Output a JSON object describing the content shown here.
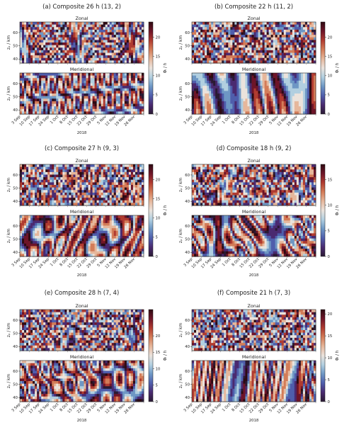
{
  "figure": {
    "colormap": [
      "#2a1a33",
      "#4a2a70",
      "#4f5eac",
      "#6e97c4",
      "#b1cfe0",
      "#ebe3dc",
      "#e6b79b",
      "#d37c58",
      "#b03b30",
      "#6e1528",
      "#2e0a12"
    ]
  },
  "chart_data": [
    {
      "type": "heatmap",
      "title": "(a) Composite 26 h (13, 2)",
      "components": [
        "Zonal",
        "Meridional"
      ],
      "ylabel": "zₚ / km",
      "ylim": [
        37,
        68
      ],
      "yticks": [
        "40",
        "50",
        "60"
      ],
      "xticks": [
        "3 Sep",
        "10 Sep",
        "17 Sep",
        "24 Sep",
        "1 Oct",
        "8 Oct",
        "15 Oct",
        "22 Oct",
        "29 Oct",
        "5 Nov",
        "12 Nov",
        "19 Nov",
        "26 Nov"
      ],
      "xlabel": "2018",
      "colorbar_label": "Φₗ / h",
      "clim": [
        0,
        24
      ],
      "colorbar_ticks": [
        "0",
        "5",
        "10",
        "15",
        "20"
      ]
    },
    {
      "type": "heatmap",
      "title": "(b) Composite 22 h (11, 2)",
      "components": [
        "Zonal",
        "Meridional"
      ],
      "ylabel": "zₚ / km",
      "ylim": [
        37,
        68
      ],
      "yticks": [
        "40",
        "50",
        "60"
      ],
      "xticks": [
        "3 Sep",
        "10 Sep",
        "17 Sep",
        "24 Sep",
        "1 Oct",
        "8 Oct",
        "15 Oct",
        "22 Oct",
        "29 Oct",
        "5 Nov",
        "12 Nov",
        "19 Nov",
        "26 Nov"
      ],
      "xlabel": "2018",
      "colorbar_label": "Φₗ / h",
      "clim": [
        0,
        24
      ],
      "colorbar_ticks": [
        "0",
        "5",
        "10",
        "15",
        "20"
      ]
    },
    {
      "type": "heatmap",
      "title": "(c) Composite 27 h (9, 3)",
      "components": [
        "Zonal",
        "Meridional"
      ],
      "ylabel": "zₚ / km",
      "ylim": [
        37,
        68
      ],
      "yticks": [
        "40",
        "50",
        "60"
      ],
      "xticks": [
        "3 Sep",
        "10 Sep",
        "17 Sep",
        "24 Sep",
        "1 Oct",
        "8 Oct",
        "15 Oct",
        "22 Oct",
        "29 Oct",
        "5 Nov",
        "12 Nov",
        "19 Nov",
        "26 Nov"
      ],
      "xlabel": "2018",
      "colorbar_label": "Φₗ / h",
      "clim": [
        0,
        24
      ],
      "colorbar_ticks": [
        "0",
        "5",
        "10",
        "15",
        "20"
      ]
    },
    {
      "type": "heatmap",
      "title": "(d) Composite 18 h (9, 2)",
      "components": [
        "Zonal",
        "Meridional"
      ],
      "ylabel": "zₚ / km",
      "ylim": [
        37,
        68
      ],
      "yticks": [
        "40",
        "50",
        "60"
      ],
      "xticks": [
        "3 Sep",
        "10 Sep",
        "17 Sep",
        "24 Sep",
        "1 Oct",
        "8 Oct",
        "15 Oct",
        "22 Oct",
        "29 Oct",
        "5 Nov",
        "12 Nov",
        "19 Nov",
        "26 Nov"
      ],
      "xlabel": "2018",
      "colorbar_label": "Φₗ / h",
      "clim": [
        0,
        18
      ],
      "colorbar_ticks": [
        "0",
        "5",
        "10",
        "15"
      ]
    },
    {
      "type": "heatmap",
      "title": "(e) Composite 28 h (7, 4)",
      "components": [
        "Zonal",
        "Meridional"
      ],
      "ylabel": "zₚ / km",
      "ylim": [
        37,
        68
      ],
      "yticks": [
        "40",
        "50",
        "60"
      ],
      "xticks": [
        "3 Sep",
        "10 Sep",
        "17 Sep",
        "24 Sep",
        "1 Oct",
        "8 Oct",
        "15 Oct",
        "22 Oct",
        "29 Oct",
        "5 Nov",
        "12 Nov",
        "19 Nov",
        "26 Nov"
      ],
      "xlabel": "2018",
      "colorbar_label": "Φₗ / h",
      "clim": [
        0,
        28
      ],
      "colorbar_ticks": [
        "0",
        "5",
        "10",
        "15",
        "20"
      ]
    },
    {
      "type": "heatmap",
      "title": "(f) Composite 21 h (7, 3)",
      "components": [
        "Zonal",
        "Meridional"
      ],
      "ylabel": "zₚ / km",
      "ylim": [
        37,
        68
      ],
      "yticks": [
        "40",
        "50",
        "60"
      ],
      "xticks": [
        "3 Sep",
        "10 Sep",
        "17 Sep",
        "24 Sep",
        "1 Oct",
        "8 Oct",
        "15 Oct",
        "22 Oct",
        "29 Oct",
        "5 Nov",
        "12 Nov",
        "19 Nov",
        "26 Nov"
      ],
      "xlabel": "2018",
      "colorbar_label": "Φₗ / h",
      "clim": [
        0,
        21
      ],
      "colorbar_ticks": [
        "0",
        "5",
        "10",
        "15",
        "20"
      ]
    }
  ]
}
